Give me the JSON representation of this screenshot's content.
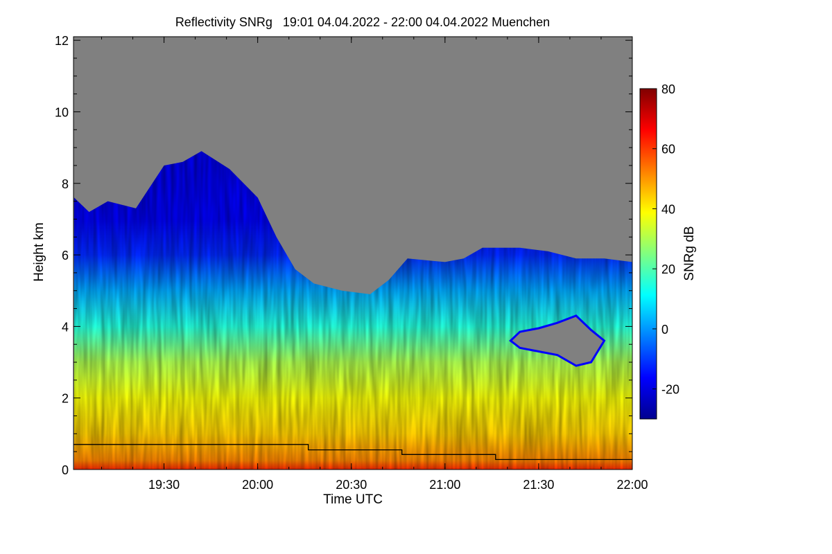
{
  "chart_data": {
    "type": "heatmap",
    "title": "Reflectivity SNRg   19:01 04.04.2022 - 22:00 04.04.2022 Muenchen",
    "xlabel": "Time UTC",
    "ylabel": "Height km",
    "x_range_hours": [
      19.0167,
      22.0
    ],
    "x_ticks": [
      {
        "value": 19.5,
        "label": "19:30"
      },
      {
        "value": 20.0,
        "label": "20:00"
      },
      {
        "value": 20.5,
        "label": "20:30"
      },
      {
        "value": 21.0,
        "label": "21:00"
      },
      {
        "value": 21.5,
        "label": "21:30"
      },
      {
        "value": 22.0,
        "label": "22:00"
      }
    ],
    "ylim": [
      0,
      12.1
    ],
    "y_ticks": [
      {
        "value": 0,
        "label": "0"
      },
      {
        "value": 2,
        "label": "2"
      },
      {
        "value": 4,
        "label": "4"
      },
      {
        "value": 6,
        "label": "6"
      },
      {
        "value": 8,
        "label": "8"
      },
      {
        "value": 10,
        "label": "10"
      },
      {
        "value": 12,
        "label": "12"
      }
    ],
    "colorbar": {
      "label": "SNRg dB",
      "range": [
        -30,
        80
      ],
      "ticks": [
        {
          "value": -20,
          "label": "-20"
        },
        {
          "value": 0,
          "label": "0"
        },
        {
          "value": 20,
          "label": "20"
        },
        {
          "value": 40,
          "label": "40"
        },
        {
          "value": 60,
          "label": "60"
        },
        {
          "value": 80,
          "label": "80"
        }
      ],
      "colors": [
        "#00008f",
        "#0000ff",
        "#0080ff",
        "#00ffff",
        "#80ff80",
        "#ffff00",
        "#ff8000",
        "#ff0000",
        "#800000"
      ]
    },
    "no_signal_color": "#808080",
    "signal_top_km": [
      [
        19.02,
        7.6
      ],
      [
        19.1,
        7.2
      ],
      [
        19.2,
        7.5
      ],
      [
        19.35,
        7.3
      ],
      [
        19.5,
        8.5
      ],
      [
        19.6,
        8.6
      ],
      [
        19.7,
        8.9
      ],
      [
        19.85,
        8.4
      ],
      [
        20.0,
        7.6
      ],
      [
        20.1,
        6.5
      ],
      [
        20.2,
        5.6
      ],
      [
        20.3,
        5.2
      ],
      [
        20.45,
        5.0
      ],
      [
        20.6,
        4.9
      ],
      [
        20.7,
        5.3
      ],
      [
        20.8,
        5.9
      ],
      [
        21.0,
        5.8
      ],
      [
        21.1,
        5.9
      ],
      [
        21.2,
        6.2
      ],
      [
        21.4,
        6.2
      ],
      [
        21.55,
        6.1
      ],
      [
        21.7,
        5.9
      ],
      [
        21.85,
        5.9
      ],
      [
        22.0,
        5.8
      ]
    ],
    "signal_gap": {
      "x_range_hours": [
        21.35,
        21.85
      ],
      "profile_km": [
        [
          21.35,
          3.6
        ],
        [
          21.4,
          3.85
        ],
        [
          21.5,
          3.95
        ],
        [
          21.6,
          4.1
        ],
        [
          21.7,
          4.3
        ],
        [
          21.78,
          3.9
        ],
        [
          21.85,
          3.6
        ],
        [
          21.78,
          3.0
        ],
        [
          21.7,
          2.9
        ],
        [
          21.6,
          3.2
        ],
        [
          21.5,
          3.3
        ],
        [
          21.4,
          3.4
        ]
      ]
    },
    "line_series": {
      "points": [
        [
          19.0167,
          0.7
        ],
        [
          20.27,
          0.7
        ],
        [
          20.27,
          0.55
        ],
        [
          20.77,
          0.55
        ],
        [
          20.77,
          0.42
        ],
        [
          21.27,
          0.42
        ],
        [
          21.27,
          0.28
        ],
        [
          22.0,
          0.28
        ]
      ],
      "color": "#000000"
    }
  }
}
